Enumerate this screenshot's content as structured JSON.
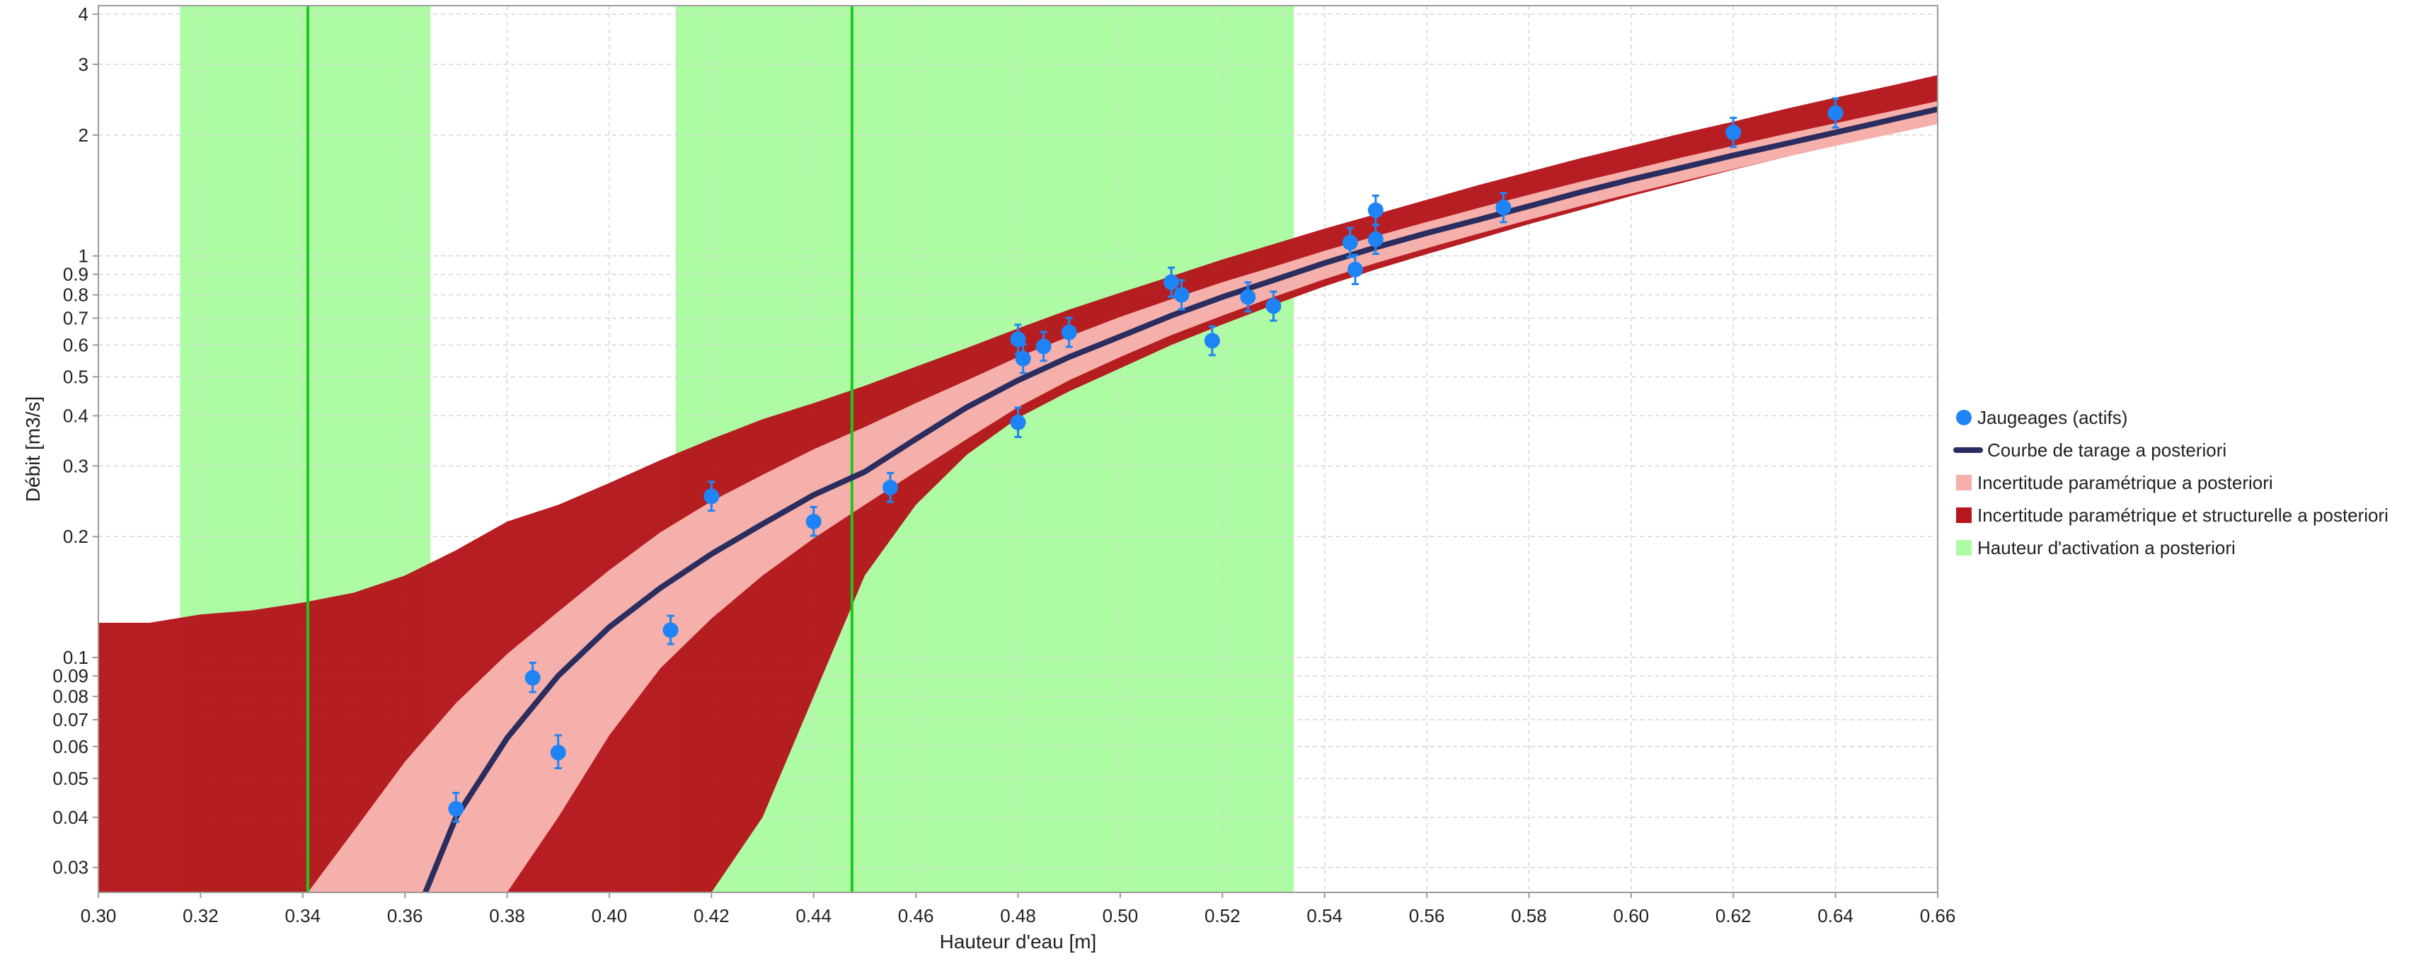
{
  "chart_data": {
    "type": "scatter",
    "title": "",
    "xlabel": "Hauteur d'eau [m]",
    "ylabel": "Débit [m3/s]",
    "xlim": [
      0.3,
      0.66
    ],
    "ylim": [
      0.026,
      4.2
    ],
    "yscale": "log",
    "grid": true,
    "legend_position": "right",
    "x_ticks": [
      "0.30",
      "0.32",
      "0.34",
      "0.36",
      "0.38",
      "0.40",
      "0.42",
      "0.44",
      "0.46",
      "0.48",
      "0.50",
      "0.52",
      "0.54",
      "0.56",
      "0.58",
      "0.60",
      "0.62",
      "0.64",
      "0.66"
    ],
    "y_ticks": [
      {
        "value": 0.03,
        "label": "0.03"
      },
      {
        "value": 0.04,
        "label": "0.04"
      },
      {
        "value": 0.05,
        "label": "0.05"
      },
      {
        "value": 0.06,
        "label": "0.06"
      },
      {
        "value": 0.07,
        "label": "0.07"
      },
      {
        "value": 0.08,
        "label": "0.08"
      },
      {
        "value": 0.09,
        "label": "0.09"
      },
      {
        "value": 0.1,
        "label": "0.1"
      },
      {
        "value": 0.2,
        "label": "0.2"
      },
      {
        "value": 0.3,
        "label": "0.3"
      },
      {
        "value": 0.4,
        "label": "0.4"
      },
      {
        "value": 0.5,
        "label": "0.5"
      },
      {
        "value": 0.6,
        "label": "0.6"
      },
      {
        "value": 0.7,
        "label": "0.7"
      },
      {
        "value": 0.8,
        "label": "0.8"
      },
      {
        "value": 0.9,
        "label": "0.9"
      },
      {
        "value": 1,
        "label": "1"
      },
      {
        "value": 2,
        "label": "2"
      },
      {
        "value": 3,
        "label": "3"
      },
      {
        "value": 4,
        "label": "4"
      }
    ],
    "activation_bands": [
      {
        "x_min": 0.316,
        "x_max": 0.365,
        "x_center": 0.341
      },
      {
        "x_min": 0.413,
        "x_max": 0.534,
        "x_center": 0.4475
      }
    ],
    "total_uncertainty": {
      "x": [
        0.3,
        0.31,
        0.32,
        0.33,
        0.34,
        0.35,
        0.36,
        0.37,
        0.38,
        0.39,
        0.4,
        0.41,
        0.42,
        0.43,
        0.44,
        0.45,
        0.46,
        0.47,
        0.48,
        0.49,
        0.5,
        0.51,
        0.52,
        0.53,
        0.54,
        0.55,
        0.56,
        0.57,
        0.58,
        0.59,
        0.6,
        0.61,
        0.62,
        0.63,
        0.64,
        0.65,
        0.66
      ],
      "upper": [
        0.122,
        0.122,
        0.128,
        0.131,
        0.137,
        0.145,
        0.16,
        0.185,
        0.218,
        0.24,
        0.272,
        0.31,
        0.35,
        0.392,
        0.43,
        0.475,
        0.53,
        0.59,
        0.66,
        0.735,
        0.81,
        0.89,
        0.98,
        1.07,
        1.17,
        1.27,
        1.38,
        1.5,
        1.62,
        1.75,
        1.88,
        2.02,
        2.16,
        2.32,
        2.48,
        2.64,
        2.82
      ],
      "lower": [
        0.026,
        0.026,
        0.026,
        0.026,
        0.026,
        0.026,
        0.026,
        0.026,
        0.026,
        0.026,
        0.026,
        0.026,
        0.026,
        0.04,
        0.08,
        0.16,
        0.24,
        0.32,
        0.395,
        0.46,
        0.525,
        0.6,
        0.675,
        0.755,
        0.84,
        0.925,
        1.01,
        1.1,
        1.2,
        1.3,
        1.41,
        1.52,
        1.64,
        1.76,
        1.89,
        2.02,
        2.16
      ]
    },
    "parametric_uncertainty": {
      "x": [
        0.341,
        0.35,
        0.36,
        0.37,
        0.38,
        0.39,
        0.4,
        0.41,
        0.42,
        0.43,
        0.44,
        0.45,
        0.46,
        0.47,
        0.48,
        0.49,
        0.5,
        0.51,
        0.52,
        0.53,
        0.54,
        0.55,
        0.56,
        0.57,
        0.58,
        0.59,
        0.6,
        0.61,
        0.62,
        0.63,
        0.64,
        0.65,
        0.66
      ],
      "upper": [
        0.026,
        0.037,
        0.055,
        0.077,
        0.102,
        0.13,
        0.165,
        0.205,
        0.245,
        0.285,
        0.33,
        0.375,
        0.43,
        0.49,
        0.56,
        0.63,
        0.705,
        0.78,
        0.86,
        0.94,
        1.03,
        1.12,
        1.215,
        1.315,
        1.42,
        1.53,
        1.64,
        1.76,
        1.88,
        2.01,
        2.14,
        2.28,
        2.43
      ],
      "lower": [
        0.026,
        0.026,
        0.026,
        0.026,
        0.026,
        0.04,
        0.064,
        0.094,
        0.125,
        0.16,
        0.198,
        0.24,
        0.29,
        0.35,
        0.42,
        0.49,
        0.56,
        0.635,
        0.71,
        0.79,
        0.875,
        0.96,
        1.045,
        1.135,
        1.23,
        1.33,
        1.43,
        1.535,
        1.645,
        1.76,
        1.88,
        2.0,
        2.13
      ]
    },
    "rating_curve": {
      "x": [
        0.364,
        0.37,
        0.38,
        0.39,
        0.4,
        0.41,
        0.42,
        0.43,
        0.44,
        0.45,
        0.46,
        0.47,
        0.48,
        0.49,
        0.5,
        0.51,
        0.52,
        0.53,
        0.54,
        0.55,
        0.56,
        0.57,
        0.58,
        0.59,
        0.6,
        0.61,
        0.62,
        0.63,
        0.64,
        0.65,
        0.66
      ],
      "y": [
        0.026,
        0.04,
        0.063,
        0.09,
        0.119,
        0.149,
        0.181,
        0.215,
        0.254,
        0.29,
        0.35,
        0.42,
        0.49,
        0.56,
        0.63,
        0.71,
        0.79,
        0.87,
        0.96,
        1.05,
        1.14,
        1.23,
        1.33,
        1.44,
        1.55,
        1.66,
        1.78,
        1.9,
        2.03,
        2.17,
        2.32
      ]
    },
    "gaugings": [
      {
        "x": 0.37,
        "y": 0.042,
        "y_low": 0.039,
        "y_high": 0.046
      },
      {
        "x": 0.385,
        "y": 0.089,
        "y_low": 0.082,
        "y_high": 0.097
      },
      {
        "x": 0.39,
        "y": 0.058,
        "y_low": 0.053,
        "y_high": 0.064
      },
      {
        "x": 0.412,
        "y": 0.117,
        "y_low": 0.108,
        "y_high": 0.127
      },
      {
        "x": 0.42,
        "y": 0.252,
        "y_low": 0.232,
        "y_high": 0.274
      },
      {
        "x": 0.44,
        "y": 0.218,
        "y_low": 0.201,
        "y_high": 0.237
      },
      {
        "x": 0.455,
        "y": 0.265,
        "y_low": 0.244,
        "y_high": 0.288
      },
      {
        "x": 0.48,
        "y": 0.62,
        "y_low": 0.57,
        "y_high": 0.674
      },
      {
        "x": 0.48,
        "y": 0.385,
        "y_low": 0.354,
        "y_high": 0.419
      },
      {
        "x": 0.481,
        "y": 0.555,
        "y_low": 0.511,
        "y_high": 0.603
      },
      {
        "x": 0.485,
        "y": 0.595,
        "y_low": 0.548,
        "y_high": 0.647
      },
      {
        "x": 0.49,
        "y": 0.645,
        "y_low": 0.594,
        "y_high": 0.701
      },
      {
        "x": 0.51,
        "y": 0.86,
        "y_low": 0.791,
        "y_high": 0.935
      },
      {
        "x": 0.512,
        "y": 0.8,
        "y_low": 0.736,
        "y_high": 0.87
      },
      {
        "x": 0.518,
        "y": 0.615,
        "y_low": 0.566,
        "y_high": 0.668
      },
      {
        "x": 0.525,
        "y": 0.79,
        "y_low": 0.727,
        "y_high": 0.859
      },
      {
        "x": 0.53,
        "y": 0.75,
        "y_low": 0.69,
        "y_high": 0.815
      },
      {
        "x": 0.545,
        "y": 1.08,
        "y_low": 0.994,
        "y_high": 1.174
      },
      {
        "x": 0.546,
        "y": 0.925,
        "y_low": 0.851,
        "y_high": 1.005
      },
      {
        "x": 0.55,
        "y": 1.3,
        "y_low": 1.196,
        "y_high": 1.413
      },
      {
        "x": 0.55,
        "y": 1.1,
        "y_low": 1.012,
        "y_high": 1.196
      },
      {
        "x": 0.575,
        "y": 1.32,
        "y_low": 1.214,
        "y_high": 1.435
      },
      {
        "x": 0.62,
        "y": 2.03,
        "y_low": 1.868,
        "y_high": 2.207
      },
      {
        "x": 0.64,
        "y": 2.27,
        "y_low": 2.088,
        "y_high": 2.468
      }
    ],
    "colors": {
      "total_uncertainty": "#b5171c",
      "parametric_uncertainty": "#f5b0ab",
      "rating_curve": "#2b2d5e",
      "gaugings": "#1e84f5",
      "activation_band": "#adfca4",
      "activation_line": "#1ec71e",
      "grid": "#d5d5d5",
      "axis": "#9a9a9a"
    },
    "legend": [
      {
        "key": "gaugings",
        "label": "Jaugeages (actifs)",
        "symbol": "dot"
      },
      {
        "key": "rating_curve",
        "label": "Courbe de tarage a posteriori",
        "symbol": "line"
      },
      {
        "key": "parametric_uncertainty",
        "label": "Incertitude paramétrique a posteriori",
        "symbol": "square"
      },
      {
        "key": "total_uncertainty",
        "label": "Incertitude paramétrique et structurelle a posteriori",
        "symbol": "square"
      },
      {
        "key": "activation_band",
        "label": "Hauteur d'activation a posteriori",
        "symbol": "square"
      }
    ]
  }
}
